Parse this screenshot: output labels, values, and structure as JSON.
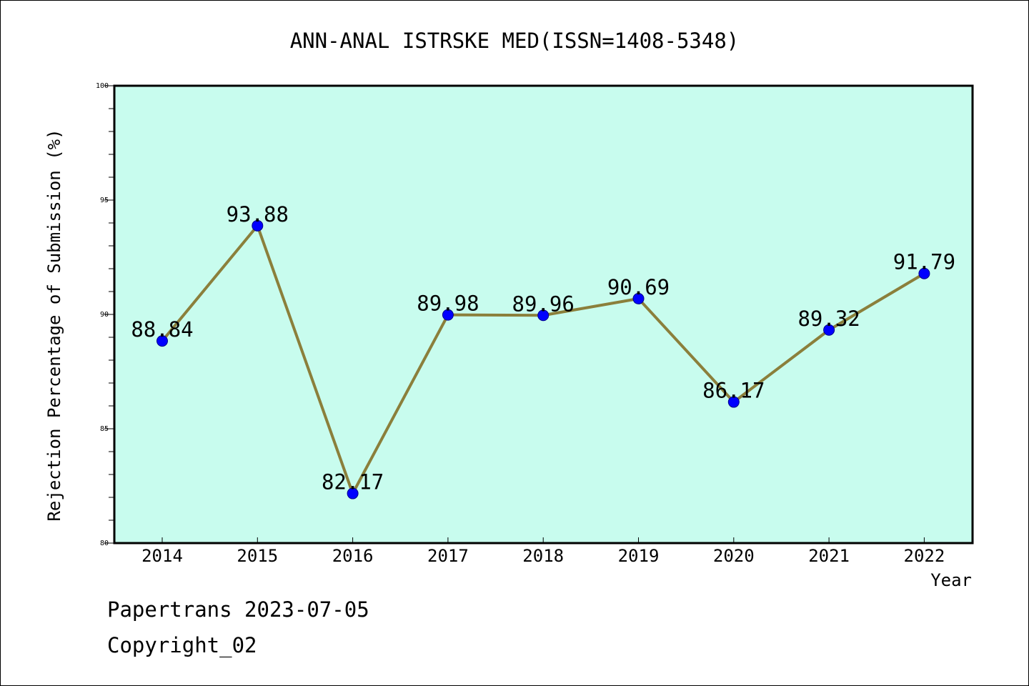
{
  "chart_data": {
    "type": "line",
    "title": "ANN-ANAL ISTRSKE MED(ISSN=1408-5348)",
    "xlabel": "Year",
    "ylabel": "Rejection Percentage of Submission (%)",
    "categories": [
      "2014",
      "2015",
      "2016",
      "2017",
      "2018",
      "2019",
      "2020",
      "2021",
      "2022"
    ],
    "values": [
      88.84,
      93.88,
      82.17,
      89.98,
      89.96,
      90.69,
      86.17,
      89.32,
      91.79
    ],
    "data_labels": [
      "88.84",
      "93.88",
      "82.17",
      "89.98",
      "89.96",
      "90.69",
      "86.17",
      "89.32",
      "91.79"
    ],
    "ylim": [
      80,
      100
    ],
    "yticks": [
      "80",
      "85",
      "90",
      "95",
      "100"
    ],
    "grid": false,
    "colors": {
      "plot_background": "#c8fcee",
      "line": "#8b7f3b",
      "marker": "#0000ff",
      "axis": "#000000"
    }
  },
  "footer": {
    "line1": "Papertrans 2023-07-05",
    "line2": "Copyright_02"
  }
}
